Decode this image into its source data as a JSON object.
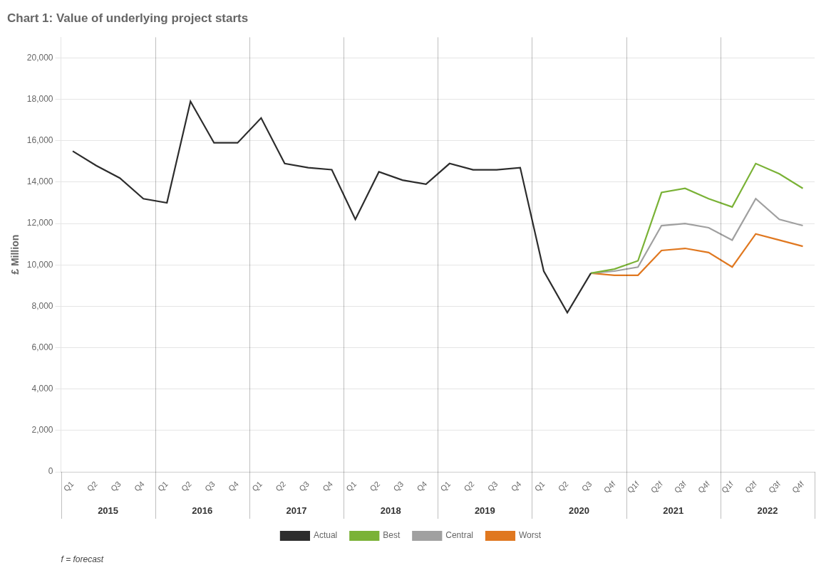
{
  "chart_data": {
    "type": "line",
    "title": "Chart 1: Value of underlying project starts",
    "y_label": "£ Million",
    "annotations": {
      "group_labels": [
        "2015",
        "2016",
        "2017",
        "2018",
        "2019",
        "2020",
        "2021",
        "2022"
      ],
      "footnote": "f = forecast"
    },
    "categories": [
      "Q1",
      "Q2",
      "Q3",
      "Q4",
      "Q1",
      "Q2",
      "Q3",
      "Q4",
      "Q1",
      "Q2",
      "Q3",
      "Q4",
      "Q1",
      "Q2",
      "Q3",
      "Q4",
      "Q1",
      "Q2",
      "Q3",
      "Q4",
      "Q1",
      "Q2",
      "Q3",
      "Q4f",
      "Q1f",
      "Q2f",
      "Q3f",
      "Q4f",
      "Q1f",
      "Q2f",
      "Q3f",
      "Q4f"
    ],
    "series": [
      {
        "name": "Actual",
        "color": "#2d2d2d",
        "values": [
          15500,
          14800,
          14200,
          13200,
          13000,
          17900,
          15900,
          15900,
          17100,
          14900,
          14700,
          14600,
          12200,
          14500,
          14100,
          13900,
          14900,
          14600,
          14600,
          14700,
          9700,
          7700,
          9600,
          null,
          null,
          null,
          null,
          null,
          null,
          null,
          null,
          null
        ]
      },
      {
        "name": "Best",
        "color": "#7ab236",
        "values": [
          null,
          null,
          null,
          null,
          null,
          null,
          null,
          null,
          null,
          null,
          null,
          null,
          null,
          null,
          null,
          null,
          null,
          null,
          null,
          null,
          null,
          null,
          9600,
          9800,
          10200,
          13500,
          13700,
          13200,
          12800,
          14900,
          14400,
          13700
        ]
      },
      {
        "name": "Central",
        "color": "#a0a0a0",
        "values": [
          null,
          null,
          null,
          null,
          null,
          null,
          null,
          null,
          null,
          null,
          null,
          null,
          null,
          null,
          null,
          null,
          null,
          null,
          null,
          null,
          null,
          null,
          9600,
          9700,
          9900,
          11900,
          12000,
          11800,
          11200,
          13200,
          12200,
          11900
        ]
      },
      {
        "name": "Worst",
        "color": "#e07820",
        "values": [
          null,
          null,
          null,
          null,
          null,
          null,
          null,
          null,
          null,
          null,
          null,
          null,
          null,
          null,
          null,
          null,
          null,
          null,
          null,
          null,
          null,
          null,
          9600,
          9500,
          9500,
          10700,
          10800,
          10600,
          9900,
          11500,
          11200,
          10900
        ]
      }
    ],
    "ylim": [
      0,
      21000
    ],
    "yticks": [
      0,
      {
        "value": 2000,
        "label": "2,000"
      },
      {
        "value": 4000,
        "label": "4,000"
      },
      {
        "value": 6000,
        "label": "6,000"
      },
      {
        "value": 8000,
        "label": "8,000"
      },
      {
        "value": 10000,
        "label": "10,000"
      },
      {
        "value": 12000,
        "label": "12,000"
      },
      {
        "value": 14000,
        "label": "14,000"
      },
      {
        "value": 16000,
        "label": "16,000"
      },
      {
        "value": 18000,
        "label": "18,000"
      },
      {
        "value": 20000,
        "label": "20,000"
      }
    ],
    "grid": true,
    "legend": "bottom"
  }
}
